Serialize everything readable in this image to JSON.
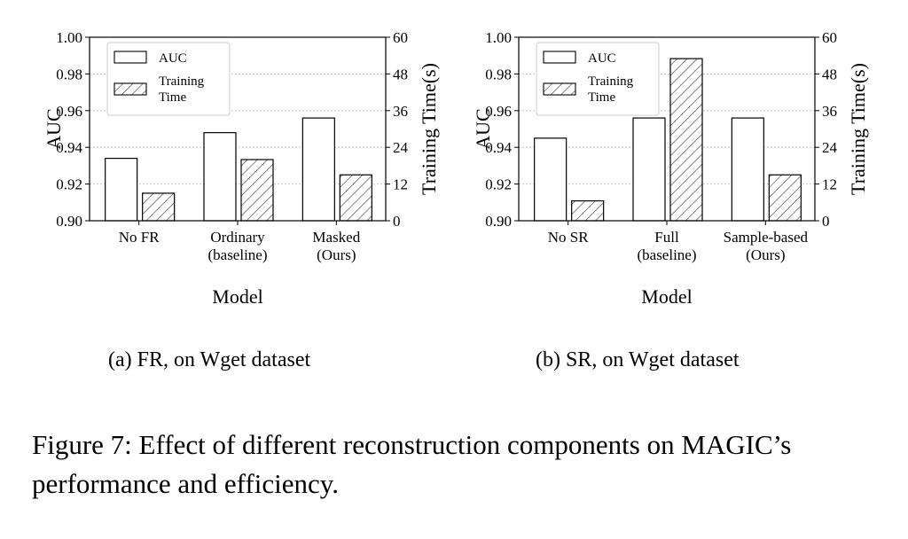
{
  "charts": [
    {
      "type": "bar",
      "xlabel": "Model",
      "ylabel_left": "AUC",
      "ylabel_right": "Training Time(s)",
      "categories": [
        [
          "No FR"
        ],
        [
          "Ordinary",
          "(baseline)"
        ],
        [
          "Masked",
          "(Ours)"
        ]
      ],
      "left_ticks": [
        "0.90",
        "0.92",
        "0.94",
        "0.96",
        "0.98",
        "1.00"
      ],
      "right_ticks": [
        "0",
        "12",
        "24",
        "36",
        "48",
        "60"
      ],
      "left_ylim": [
        0.9,
        1.0
      ],
      "right_ylim": [
        0,
        60
      ],
      "grid": "horizontal dotted",
      "legend_position": "top-left",
      "legend": [
        [
          "AUC"
        ],
        [
          "Training",
          "Time"
        ]
      ],
      "series": [
        {
          "name": "AUC",
          "axis": "left",
          "style": "white",
          "values": [
            0.934,
            0.948,
            0.956
          ]
        },
        {
          "name": "Training Time",
          "axis": "right",
          "style": "hatched",
          "values": [
            9,
            20,
            15
          ]
        }
      ],
      "caption": "(a)  FR, on Wget dataset"
    },
    {
      "type": "bar",
      "xlabel": "Model",
      "ylabel_left": "AUC",
      "ylabel_right": "Training Time(s)",
      "categories": [
        [
          "No SR"
        ],
        [
          "Full",
          "(baseline)"
        ],
        [
          "Sample-based",
          "(Ours)"
        ]
      ],
      "left_ticks": [
        "0.90",
        "0.92",
        "0.94",
        "0.96",
        "0.98",
        "1.00"
      ],
      "right_ticks": [
        "0",
        "12",
        "24",
        "36",
        "48",
        "60"
      ],
      "left_ylim": [
        0.9,
        1.0
      ],
      "right_ylim": [
        0,
        60
      ],
      "grid": "horizontal dotted",
      "legend_position": "top-left",
      "legend": [
        [
          "AUC"
        ],
        [
          "Training",
          "Time"
        ]
      ],
      "series": [
        {
          "name": "AUC",
          "axis": "left",
          "style": "white",
          "values": [
            0.945,
            0.956,
            0.956
          ]
        },
        {
          "name": "Training Time",
          "axis": "right",
          "style": "hatched",
          "values": [
            6.5,
            53,
            15
          ]
        }
      ],
      "caption": "(b)  SR, on Wget dataset"
    }
  ],
  "figure_caption": "Figure 7: Effect of different reconstruction components on MAGIC’s performance and efficiency."
}
